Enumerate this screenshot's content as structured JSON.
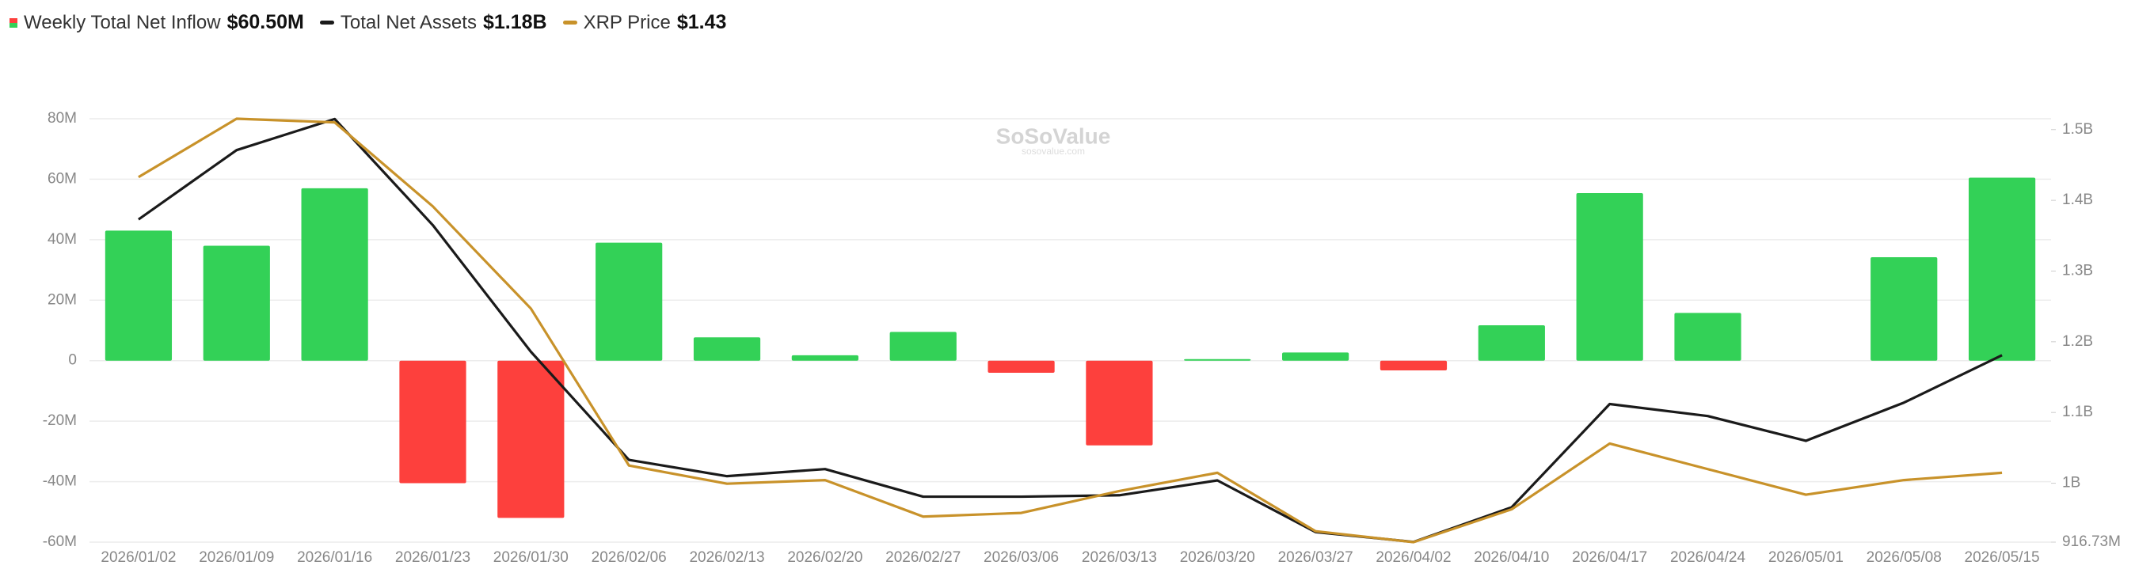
{
  "chart_data": {
    "type": "bar-line",
    "watermark": "SoSoValue",
    "watermark_sub": "sosovalue.com",
    "categories": [
      "2026/01/02",
      "2026/01/09",
      "2026/01/16",
      "2026/01/23",
      "2026/01/30",
      "2026/02/06",
      "2026/02/13",
      "2026/02/20",
      "2026/02/27",
      "2026/03/06",
      "2026/03/13",
      "2026/03/20",
      "2026/03/27",
      "2026/04/02",
      "2026/04/10",
      "2026/04/17",
      "2026/04/24",
      "2026/05/01",
      "2026/05/08",
      "2026/05/15"
    ],
    "series": [
      {
        "name": "Weekly Total Net Inflow",
        "value_label": "$60.50M",
        "positive_color": "#33d157",
        "negative_color": "#fd403d",
        "axis": "y",
        "values": [
          43,
          38,
          57,
          -40.5,
          -52,
          39,
          7.7,
          1.8,
          9.5,
          -4,
          -28,
          0.5,
          2.7,
          -3.2,
          11.7,
          55.4,
          15.8,
          0,
          34.2,
          60.5
        ]
      },
      {
        "name": "Total Net Assets",
        "value_label": "$1.18B",
        "color": "#1a1a1a",
        "axis": "y2",
        "values": [
          1373,
          1471,
          1515,
          1365,
          1186,
          1033,
          1010,
          1020,
          981,
          981,
          983,
          1004,
          931,
          917,
          966,
          1112,
          1095,
          1060,
          1114,
          1181
        ]
      },
      {
        "name": "XRP Price",
        "value_label": "$1.43",
        "color": "#c8922a",
        "axis": "y3",
        "values": [
          2.24,
          2.4,
          2.39,
          2.16,
          1.88,
          1.45,
          1.4,
          1.41,
          1.31,
          1.32,
          1.38,
          1.43,
          1.27,
          1.24,
          1.33,
          1.51,
          1.44,
          1.37,
          1.41,
          1.43
        ]
      }
    ],
    "ylim": [
      -60,
      80
    ],
    "yticks": [
      {
        "value": -60,
        "label": "-60M"
      },
      {
        "value": -40,
        "label": "-40M"
      },
      {
        "value": -20,
        "label": "-20M"
      },
      0,
      {
        "value": 20,
        "label": "20M"
      },
      {
        "value": 40,
        "label": "40M"
      },
      {
        "value": 60,
        "label": "60M"
      },
      {
        "value": 80,
        "label": "80M"
      }
    ],
    "y2lim": [
      916.73,
      1515.4
    ],
    "y2ticks": [
      {
        "value": 916.73,
        "label": "916.73M"
      },
      {
        "value": 1000,
        "label": "1B"
      },
      {
        "value": 1100,
        "label": "1.1B"
      },
      {
        "value": 1200,
        "label": "1.2B"
      },
      {
        "value": 1300,
        "label": "1.3B"
      },
      {
        "value": 1400,
        "label": "1.4B"
      },
      {
        "value": 1500,
        "label": "1.5B"
      }
    ],
    "y3lim": [
      1.24,
      2.4
    ],
    "grid": true
  }
}
